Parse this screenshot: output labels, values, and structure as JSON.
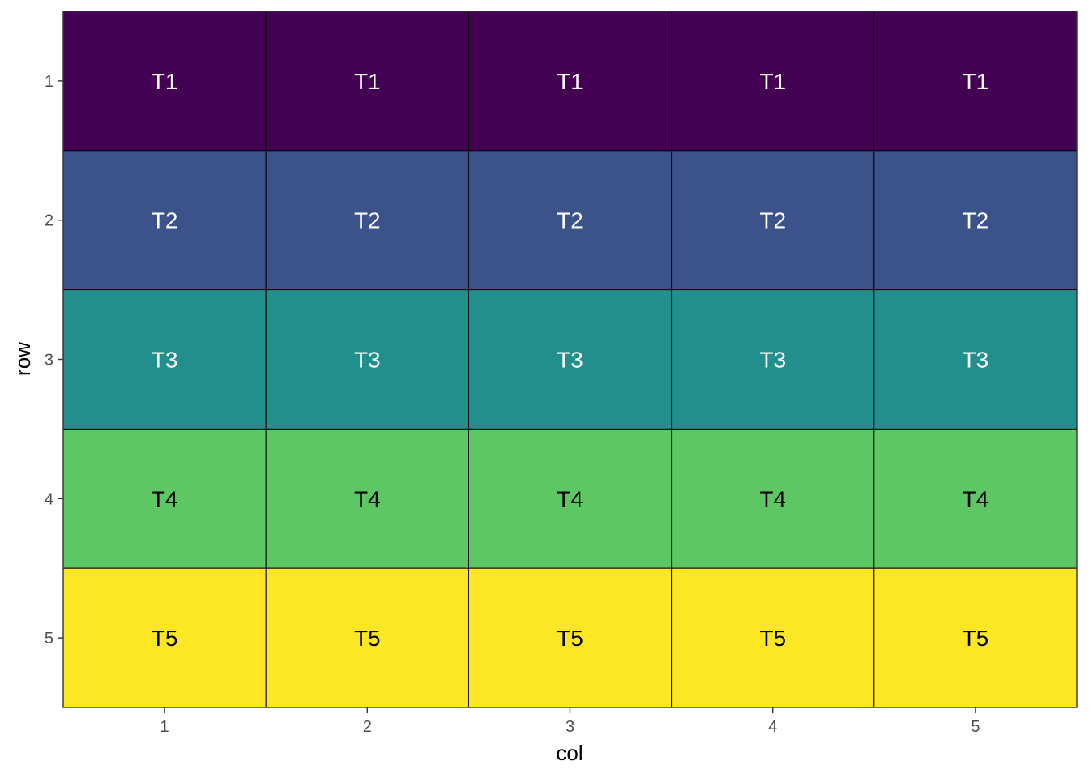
{
  "chart_data": {
    "type": "heatmap",
    "title": "",
    "xlabel": "col",
    "ylabel": "row",
    "x": [
      1,
      2,
      3,
      4,
      5
    ],
    "y": [
      1,
      2,
      3,
      4,
      5
    ],
    "x_tick_labels": [
      "1",
      "2",
      "3",
      "4",
      "5"
    ],
    "y_tick_labels": [
      "1",
      "2",
      "3",
      "4",
      "5"
    ],
    "y_axis_reversed": true,
    "grid": false,
    "legend": "none",
    "rows": [
      {
        "row": 1,
        "label": "T1",
        "fill": "#440154",
        "text_color": "#ffffff"
      },
      {
        "row": 2,
        "label": "T2",
        "fill": "#3B528B",
        "text_color": "#ffffff"
      },
      {
        "row": 3,
        "label": "T3",
        "fill": "#21908C",
        "text_color": "#ffffff"
      },
      {
        "row": 4,
        "label": "T4",
        "fill": "#5DC863",
        "text_color": "#000000"
      },
      {
        "row": 5,
        "label": "T5",
        "fill": "#FDE725",
        "text_color": "#000000"
      }
    ],
    "colors": {
      "cell_border": "#000000",
      "panel_border": "#333333",
      "tick": "#333333"
    }
  }
}
